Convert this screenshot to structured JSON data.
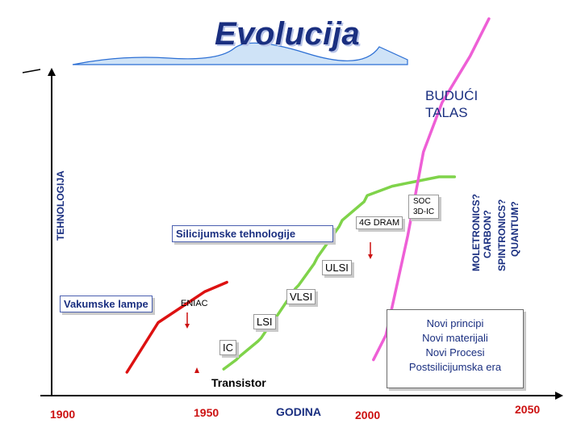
{
  "title": "Evolucija",
  "colors": {
    "title": "#1a2f80",
    "axis": "#000000",
    "years": "#cc1111",
    "vacuum": "#dd1111",
    "silicon": "#7fd34a",
    "future": "#ee5fd6",
    "blueText": "#1a2f80"
  },
  "chart_data": {
    "type": "line",
    "xlabel": "GODINA",
    "ylabel": "TEHNOLOGIJA",
    "x_ticks": [
      "1900",
      "1950",
      "2000",
      "2050"
    ],
    "xlim": [
      1900,
      2050
    ],
    "series": [
      {
        "name": "Vakumske lampe",
        "color": "#dd1111",
        "x": [
          1920,
          1930,
          1945,
          1952
        ],
        "y": [
          0.06,
          0.22,
          0.32,
          0.35
        ]
      },
      {
        "name": "Silicijumske tehnologije",
        "color": "#7fd34a",
        "x": [
          1951,
          1955,
          1956,
          1962,
          1963,
          1967,
          1968,
          1974,
          1975,
          1980,
          1981,
          1988,
          1989,
          1996,
          1997,
          2005,
          2010,
          2020,
          2025
        ],
        "y": [
          0.07,
          0.1,
          0.11,
          0.16,
          0.17,
          0.23,
          0.24,
          0.33,
          0.34,
          0.41,
          0.43,
          0.53,
          0.55,
          0.61,
          0.63,
          0.66,
          0.67,
          0.69,
          0.69
        ]
      },
      {
        "name": "Budući talas",
        "color": "#ee5fd6",
        "x": [
          1999,
          2003,
          2010,
          2015,
          2021,
          2030,
          2036
        ],
        "y": [
          0.1,
          0.18,
          0.5,
          0.77,
          0.93,
          1.08,
          1.2
        ]
      }
    ],
    "annotations": [
      {
        "label": "Transistor"
      },
      {
        "label": "ENIAC"
      },
      {
        "label": "Vakumske lampe"
      },
      {
        "label": "Silicijumske tehnologije"
      },
      {
        "label": "IC"
      },
      {
        "label": "LSI"
      },
      {
        "label": "VLSI"
      },
      {
        "label": "ULSI"
      },
      {
        "label": "4G DRAM"
      },
      {
        "label": "SOC\n3D-IC"
      },
      {
        "label": "BUDUĆI\nTALAS"
      },
      {
        "label": "Novi principi\nNovi materijali\nNovi Procesi\nPostsilicijumska era"
      }
    ],
    "future_labels": [
      "MOLETRONICS?",
      "CARBON?",
      "SPINTRONICS?",
      "QUANTUM?"
    ]
  }
}
